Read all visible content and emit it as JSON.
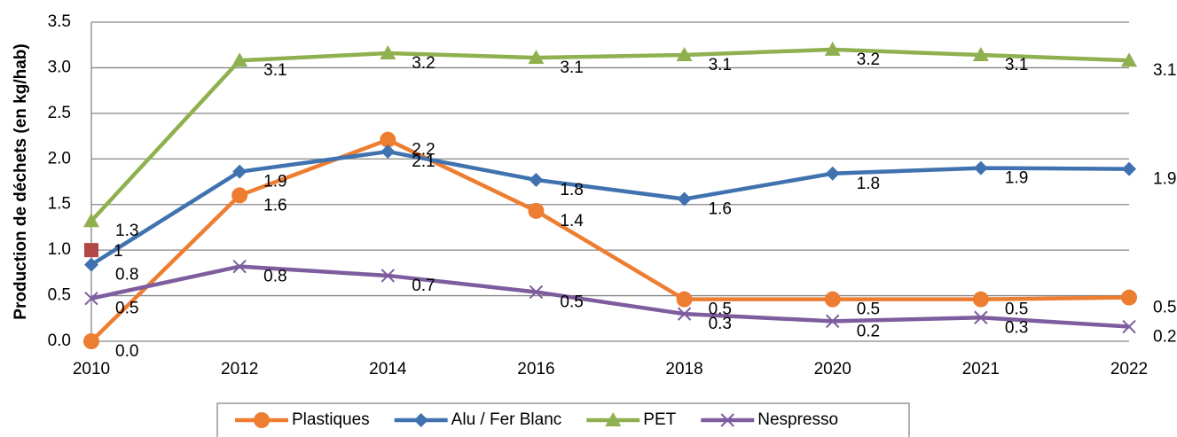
{
  "chart_data": {
    "type": "line",
    "y_label": "Production de déchets (en kg/hab)",
    "categories": [
      "2010",
      "2012",
      "2014",
      "2016",
      "2018",
      "2020",
      "2021",
      "2022"
    ],
    "ylim": [
      0,
      3.5
    ],
    "yticks": [
      {
        "value": 0,
        "label": "0.0"
      },
      0.5,
      {
        "value": 1,
        "label": "1.0"
      },
      1.5,
      {
        "value": 2,
        "label": "2.0"
      },
      2.5,
      {
        "value": 3,
        "label": "3.0"
      },
      3.5
    ],
    "grid": true,
    "legend": "bottom",
    "series": [
      {
        "name": "Plastiques",
        "color": "#ed7d31",
        "marker": "circle",
        "values": [
          0,
          1.6,
          2.21,
          1.43,
          0.46,
          0.46,
          0.46,
          0.48
        ],
        "value_labels": [
          "0.0",
          "1.6",
          "2.2",
          "1.4",
          "0.5",
          "0.5",
          "0.5",
          "0.5"
        ]
      },
      {
        "name": "Alu / Fer Blanc",
        "color": "#3f72af",
        "marker": "diamond",
        "values": [
          0.84,
          1.86,
          2.08,
          1.77,
          1.56,
          1.84,
          1.9,
          1.89
        ],
        "value_labels": [
          "0.8",
          "1.9",
          "2.1",
          "1.8",
          "1.6",
          "1.8",
          "1.9",
          "1.9"
        ]
      },
      {
        "name": "PET",
        "color": "#8fb04f",
        "marker": "triangle",
        "values": [
          1.32,
          3.08,
          3.16,
          3.11,
          3.14,
          3.2,
          3.14,
          3.08
        ],
        "value_labels": [
          "1.3",
          "3.1",
          "3.2",
          "3.1",
          "3.1",
          "3.2",
          "3.1",
          "3.1"
        ]
      },
      {
        "name": "Nespresso",
        "color": "#7d5d9e",
        "marker": "x",
        "values": [
          0.47,
          0.82,
          0.72,
          0.54,
          0.3,
          0.22,
          0.26,
          0.16
        ],
        "value_labels": [
          "0.5",
          "0.8",
          "0.7",
          "0.5",
          "0.3",
          "0.2",
          "0.3",
          "0.2"
        ]
      }
    ],
    "point": {
      "x": "2010",
      "value": 1,
      "color": "#b24846"
    }
  }
}
